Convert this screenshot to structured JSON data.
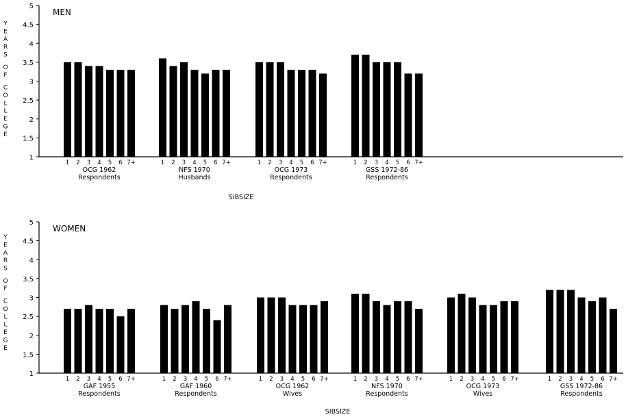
{
  "chart_data": [
    {
      "type": "bar",
      "panel_label": "MEN",
      "ylabel": "YEARS OF COLLEGE",
      "xlabel": "SIBSIZE",
      "ylim": [
        1,
        5
      ],
      "yticks": [
        1,
        1.5,
        2,
        2.5,
        3,
        3.5,
        4,
        4.5,
        5
      ],
      "categories": [
        "1",
        "2",
        "3",
        "4",
        "5",
        "6",
        "7+"
      ],
      "groups": [
        {
          "label_line1": "OCG 1962",
          "label_line2": "Respondents",
          "values": [
            3.5,
            3.5,
            3.4,
            3.4,
            3.3,
            3.3,
            3.3
          ]
        },
        {
          "label_line1": "NFS 1970",
          "label_line2": "Husbands",
          "values": [
            3.6,
            3.4,
            3.5,
            3.3,
            3.2,
            3.3,
            3.3
          ]
        },
        {
          "label_line1": "OCG 1973",
          "label_line2": "Respondents",
          "values": [
            3.5,
            3.5,
            3.5,
            3.3,
            3.3,
            3.3,
            3.2
          ]
        },
        {
          "label_line1": "GSS 1972-86",
          "label_line2": "Respondents",
          "values": [
            3.7,
            3.7,
            3.5,
            3.5,
            3.5,
            3.2,
            3.2
          ]
        }
      ]
    },
    {
      "type": "bar",
      "panel_label": "WOMEN",
      "ylabel": "YEARS OF COLLEGE",
      "xlabel": "SIBSIZE",
      "ylim": [
        1,
        5
      ],
      "yticks": [
        1,
        1.5,
        2,
        2.5,
        3,
        3.5,
        4,
        4.5,
        5
      ],
      "categories": [
        "1",
        "2",
        "3",
        "4",
        "5",
        "6",
        "7+"
      ],
      "groups": [
        {
          "label_line1": "GAF 1955",
          "label_line2": "Respondents",
          "values": [
            2.7,
            2.7,
            2.8,
            2.7,
            2.7,
            2.5,
            2.7
          ]
        },
        {
          "label_line1": "GAF 1960",
          "label_line2": "Respondents",
          "values": [
            2.8,
            2.7,
            2.8,
            2.9,
            2.7,
            2.4,
            2.8
          ]
        },
        {
          "label_line1": "OCG 1962",
          "label_line2": "Wives",
          "values": [
            3.0,
            3.0,
            3.0,
            2.8,
            2.8,
            2.8,
            2.9
          ]
        },
        {
          "label_line1": "NFS 1970",
          "label_line2": "Respondents",
          "values": [
            3.1,
            3.1,
            2.9,
            2.8,
            2.9,
            2.9,
            2.7
          ]
        },
        {
          "label_line1": "OCG 1973",
          "label_line2": "Wives",
          "values": [
            3.0,
            3.1,
            3.0,
            2.8,
            2.8,
            2.9,
            2.9
          ]
        },
        {
          "label_line1": "GSS 1972-86",
          "label_line2": "Respondents",
          "values": [
            3.2,
            3.2,
            3.2,
            3.0,
            2.9,
            3.0,
            2.7
          ]
        }
      ]
    }
  ]
}
